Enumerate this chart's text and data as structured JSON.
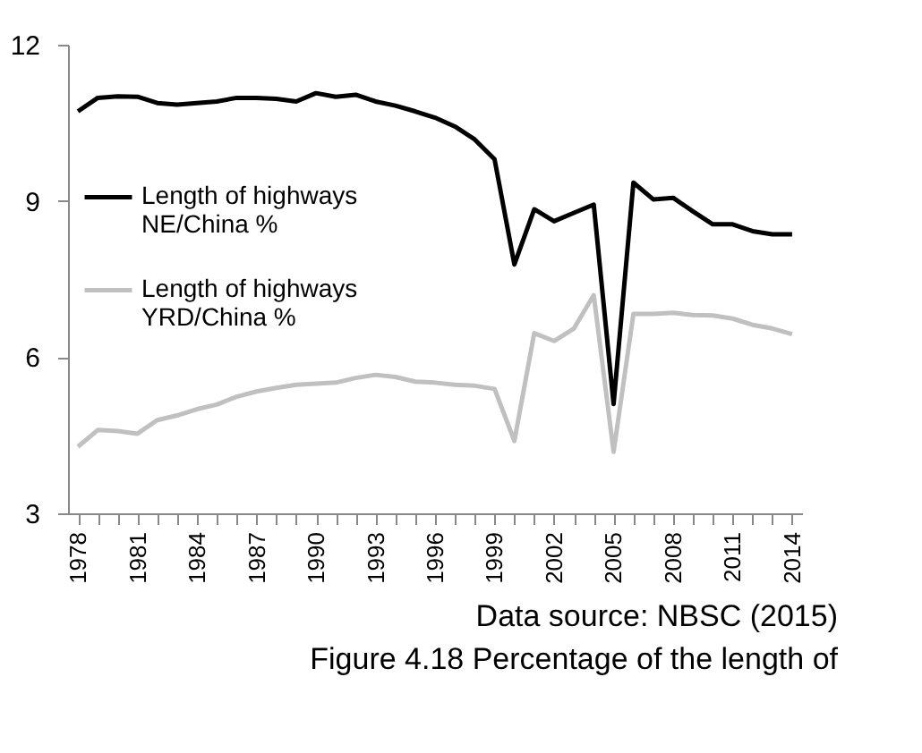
{
  "chart_data": {
    "type": "line",
    "x": [
      1978,
      1979,
      1980,
      1981,
      1982,
      1983,
      1984,
      1985,
      1986,
      1987,
      1988,
      1989,
      1990,
      1991,
      1992,
      1993,
      1994,
      1995,
      1996,
      1997,
      1998,
      1999,
      2000,
      2001,
      2002,
      2003,
      2004,
      2005,
      2006,
      2007,
      2008,
      2009,
      2010,
      2011,
      2012,
      2013,
      2014
    ],
    "series": [
      {
        "name": "Length of highways NE/China %",
        "color": "#000000",
        "values": [
          10.72,
          10.98,
          11.01,
          11.0,
          10.88,
          10.85,
          10.88,
          10.91,
          10.98,
          10.98,
          10.96,
          10.91,
          11.07,
          11.0,
          11.04,
          10.91,
          10.83,
          10.72,
          10.6,
          10.43,
          10.18,
          9.8,
          7.78,
          8.84,
          8.61,
          8.77,
          8.93,
          5.1,
          9.35,
          9.03,
          9.06,
          8.8,
          8.55,
          8.55,
          8.42,
          8.36,
          8.36
        ]
      },
      {
        "name": "Length of highways YRD/China %",
        "color": "#c0c0c0",
        "values": [
          4.28,
          4.6,
          4.58,
          4.53,
          4.79,
          4.88,
          5.0,
          5.09,
          5.24,
          5.34,
          5.41,
          5.47,
          5.49,
          5.51,
          5.6,
          5.66,
          5.62,
          5.53,
          5.51,
          5.47,
          5.45,
          5.39,
          4.39,
          6.46,
          6.31,
          6.55,
          7.19,
          4.18,
          6.83,
          6.83,
          6.85,
          6.81,
          6.8,
          6.74,
          6.62,
          6.55,
          6.44
        ]
      }
    ],
    "xlim": [
      1977.5,
      2014.5
    ],
    "xticks": [
      1978,
      {
        "value": 1979,
        "label": null
      },
      {
        "value": 1980,
        "label": null
      },
      1981,
      {
        "value": 1982,
        "label": null
      },
      {
        "value": 1983,
        "label": null
      },
      1984,
      {
        "value": 1985,
        "label": null
      },
      {
        "value": 1986,
        "label": null
      },
      1987,
      {
        "value": 1988,
        "label": null
      },
      {
        "value": 1989,
        "label": null
      },
      1990,
      {
        "value": 1991,
        "label": null
      },
      {
        "value": 1992,
        "label": null
      },
      1993,
      {
        "value": 1994,
        "label": null
      },
      {
        "value": 1995,
        "label": null
      },
      1996,
      {
        "value": 1997,
        "label": null
      },
      {
        "value": 1998,
        "label": null
      },
      1999,
      {
        "value": 2000,
        "label": null
      },
      {
        "value": 2001,
        "label": null
      },
      2002,
      {
        "value": 2003,
        "label": null
      },
      {
        "value": 2004,
        "label": null
      },
      2005,
      {
        "value": 2006,
        "label": null
      },
      {
        "value": 2007,
        "label": null
      },
      2008,
      {
        "value": 2009,
        "label": null
      },
      {
        "value": 2010,
        "label": null
      },
      2011,
      {
        "value": 2012,
        "label": null
      },
      {
        "value": 2013,
        "label": null
      },
      2014
    ],
    "ylim": [
      3,
      12
    ],
    "yticks": [
      3,
      6,
      9,
      12
    ],
    "grid": false,
    "legend": "left",
    "line_style": "solid",
    "marker": "none",
    "annotations": [
      "Data source: NBSC (2015)",
      "Figure 4.18 Percentage of the length of"
    ]
  }
}
